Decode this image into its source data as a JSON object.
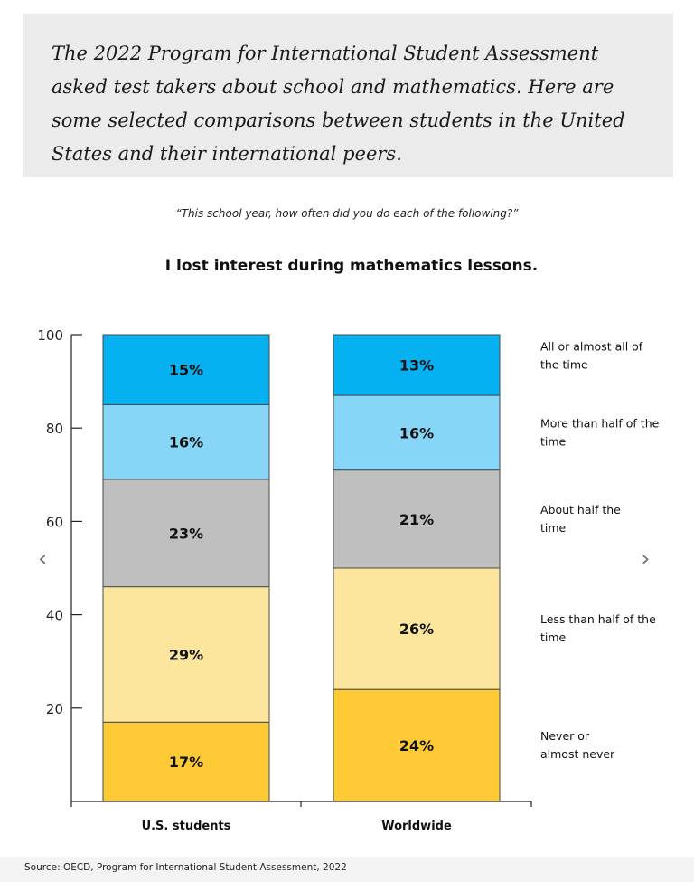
{
  "intro": {
    "text": "The 2022 Program for International Student Assessment asked test takers about school and mathematics. Here are some selected comparisons between students in the United States and their international peers."
  },
  "question": "“This school year, how often did you do each of the following?”",
  "chart_title": "I lost interest during mathematics lessons.",
  "nav": {
    "prev": "‹",
    "next": "›"
  },
  "source": "Source: OECD, Program for International Student Assessment, 2022",
  "chart_data": {
    "type": "bar",
    "stacked": true,
    "categories": [
      "U.S. students",
      "Worldwide"
    ],
    "series": [
      {
        "name": "Never or almost never",
        "values": [
          17,
          24
        ],
        "labels": [
          "17%",
          "24%"
        ],
        "color": "#fdc935"
      },
      {
        "name": "Less than half of the time",
        "values": [
          29,
          26
        ],
        "labels": [
          "29%",
          "26%"
        ],
        "color": "#fce59c"
      },
      {
        "name": "About half the time",
        "values": [
          23,
          21
        ],
        "labels": [
          "23%",
          "21%"
        ],
        "color": "#bfbfbf"
      },
      {
        "name": "More than half of the time",
        "values": [
          16,
          16
        ],
        "labels": [
          "16%",
          "16%"
        ],
        "color": "#87d6f8"
      },
      {
        "name": "All or almost all of the time",
        "values": [
          15,
          13
        ],
        "labels": [
          "15%",
          "13%"
        ],
        "color": "#06b1f1"
      }
    ],
    "legend_lines": [
      [
        "Never or",
        "almost never"
      ],
      [
        "Less than half of the",
        "time"
      ],
      [
        "About half the",
        "time"
      ],
      [
        "More than half of the",
        "time"
      ],
      [
        "All or almost all of",
        "the time"
      ]
    ],
    "yticks": [
      20,
      40,
      60,
      80,
      100
    ],
    "ylim": [
      0,
      100
    ],
    "grid": false,
    "legend": "right"
  }
}
